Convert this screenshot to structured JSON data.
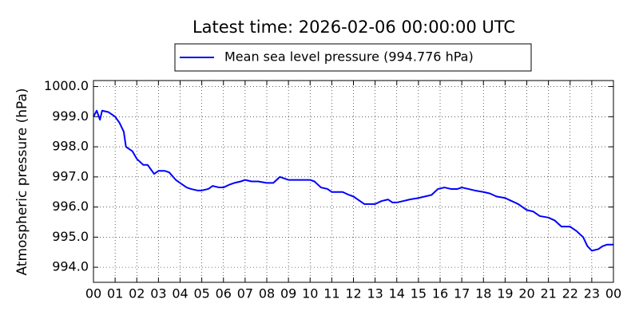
{
  "chart_data": {
    "type": "line",
    "title": "Latest time: 2026-02-06 00:00:00 UTC",
    "y_label": "Atmospheric pressure (hPa)",
    "x": [
      0,
      0.15,
      0.3,
      0.4,
      0.7,
      1.0,
      1.2,
      1.4,
      1.5,
      1.8,
      2.0,
      2.3,
      2.5,
      2.8,
      3.0,
      3.3,
      3.5,
      3.8,
      4.0,
      4.3,
      4.5,
      4.8,
      5.0,
      5.3,
      5.5,
      5.8,
      6.0,
      6.3,
      6.5,
      6.8,
      7.0,
      7.3,
      7.6,
      8.0,
      8.3,
      8.6,
      8.8,
      9.0,
      9.3,
      9.6,
      10.0,
      10.2,
      10.5,
      10.8,
      11.0,
      11.3,
      11.5,
      11.8,
      12.0,
      12.3,
      12.5,
      12.8,
      13.0,
      13.3,
      13.6,
      13.8,
      14.0,
      14.3,
      14.6,
      15.0,
      15.3,
      15.6,
      15.9,
      16.2,
      16.5,
      16.8,
      17.0,
      17.3,
      17.6,
      18.0,
      18.3,
      18.6,
      19.0,
      19.3,
      19.6,
      20.0,
      20.3,
      20.6,
      21.0,
      21.3,
      21.6,
      22.0,
      22.3,
      22.6,
      22.8,
      23.0,
      23.3,
      23.5,
      23.7,
      24.0
    ],
    "series": [
      {
        "name": "Mean sea level pressure (994.776 hPa)",
        "color": "#0000ff",
        "values": [
          999.0,
          999.2,
          998.9,
          999.2,
          999.15,
          999.0,
          998.8,
          998.5,
          998.0,
          997.85,
          997.6,
          997.4,
          997.4,
          997.1,
          997.2,
          997.2,
          997.15,
          996.9,
          996.8,
          996.65,
          996.6,
          996.55,
          996.55,
          996.6,
          996.7,
          996.65,
          996.65,
          996.75,
          996.8,
          996.85,
          996.9,
          996.85,
          996.85,
          996.8,
          996.8,
          997.0,
          996.95,
          996.9,
          996.9,
          996.9,
          996.9,
          996.85,
          996.65,
          996.6,
          996.5,
          996.5,
          996.5,
          996.4,
          996.35,
          996.2,
          996.1,
          996.1,
          996.1,
          996.2,
          996.25,
          996.15,
          996.15,
          996.2,
          996.25,
          996.3,
          996.35,
          996.4,
          996.6,
          996.65,
          996.6,
          996.6,
          996.65,
          996.6,
          996.55,
          996.5,
          996.45,
          996.35,
          996.3,
          996.2,
          996.1,
          995.9,
          995.85,
          995.7,
          995.65,
          995.55,
          995.35,
          995.35,
          995.2,
          995.0,
          994.7,
          994.55,
          994.6,
          994.7,
          994.75,
          994.75
        ]
      }
    ],
    "xlim": [
      0,
      24
    ],
    "xticks": [
      {
        "value": 0,
        "label": "00"
      },
      {
        "value": 1,
        "label": "01"
      },
      {
        "value": 2,
        "label": "02"
      },
      {
        "value": 3,
        "label": "03"
      },
      {
        "value": 4,
        "label": "04"
      },
      {
        "value": 5,
        "label": "05"
      },
      {
        "value": 6,
        "label": "06"
      },
      {
        "value": 7,
        "label": "07"
      },
      {
        "value": 8,
        "label": "08"
      },
      {
        "value": 9,
        "label": "09"
      },
      {
        "value": 10,
        "label": "10"
      },
      {
        "value": 11,
        "label": "11"
      },
      {
        "value": 12,
        "label": "12"
      },
      {
        "value": 13,
        "label": "13"
      },
      {
        "value": 14,
        "label": "14"
      },
      {
        "value": 15,
        "label": "15"
      },
      {
        "value": 16,
        "label": "16"
      },
      {
        "value": 17,
        "label": "17"
      },
      {
        "value": 18,
        "label": "18"
      },
      {
        "value": 19,
        "label": "19"
      },
      {
        "value": 20,
        "label": "20"
      },
      {
        "value": 21,
        "label": "21"
      },
      {
        "value": 22,
        "label": "22"
      },
      {
        "value": 23,
        "label": "23"
      },
      {
        "value": 24,
        "label": "00"
      }
    ],
    "ylim": [
      993.5,
      1000.2
    ],
    "yticks": [
      {
        "value": 994,
        "label": "994.0"
      },
      {
        "value": 995,
        "label": "995.0"
      },
      {
        "value": 996,
        "label": "996.0"
      },
      {
        "value": 997,
        "label": "997.0"
      },
      {
        "value": 998,
        "label": "998.0"
      },
      {
        "value": 999,
        "label": "999.0"
      },
      {
        "value": 1000,
        "label": "1000.0"
      }
    ],
    "grid": true,
    "legend": "top"
  }
}
